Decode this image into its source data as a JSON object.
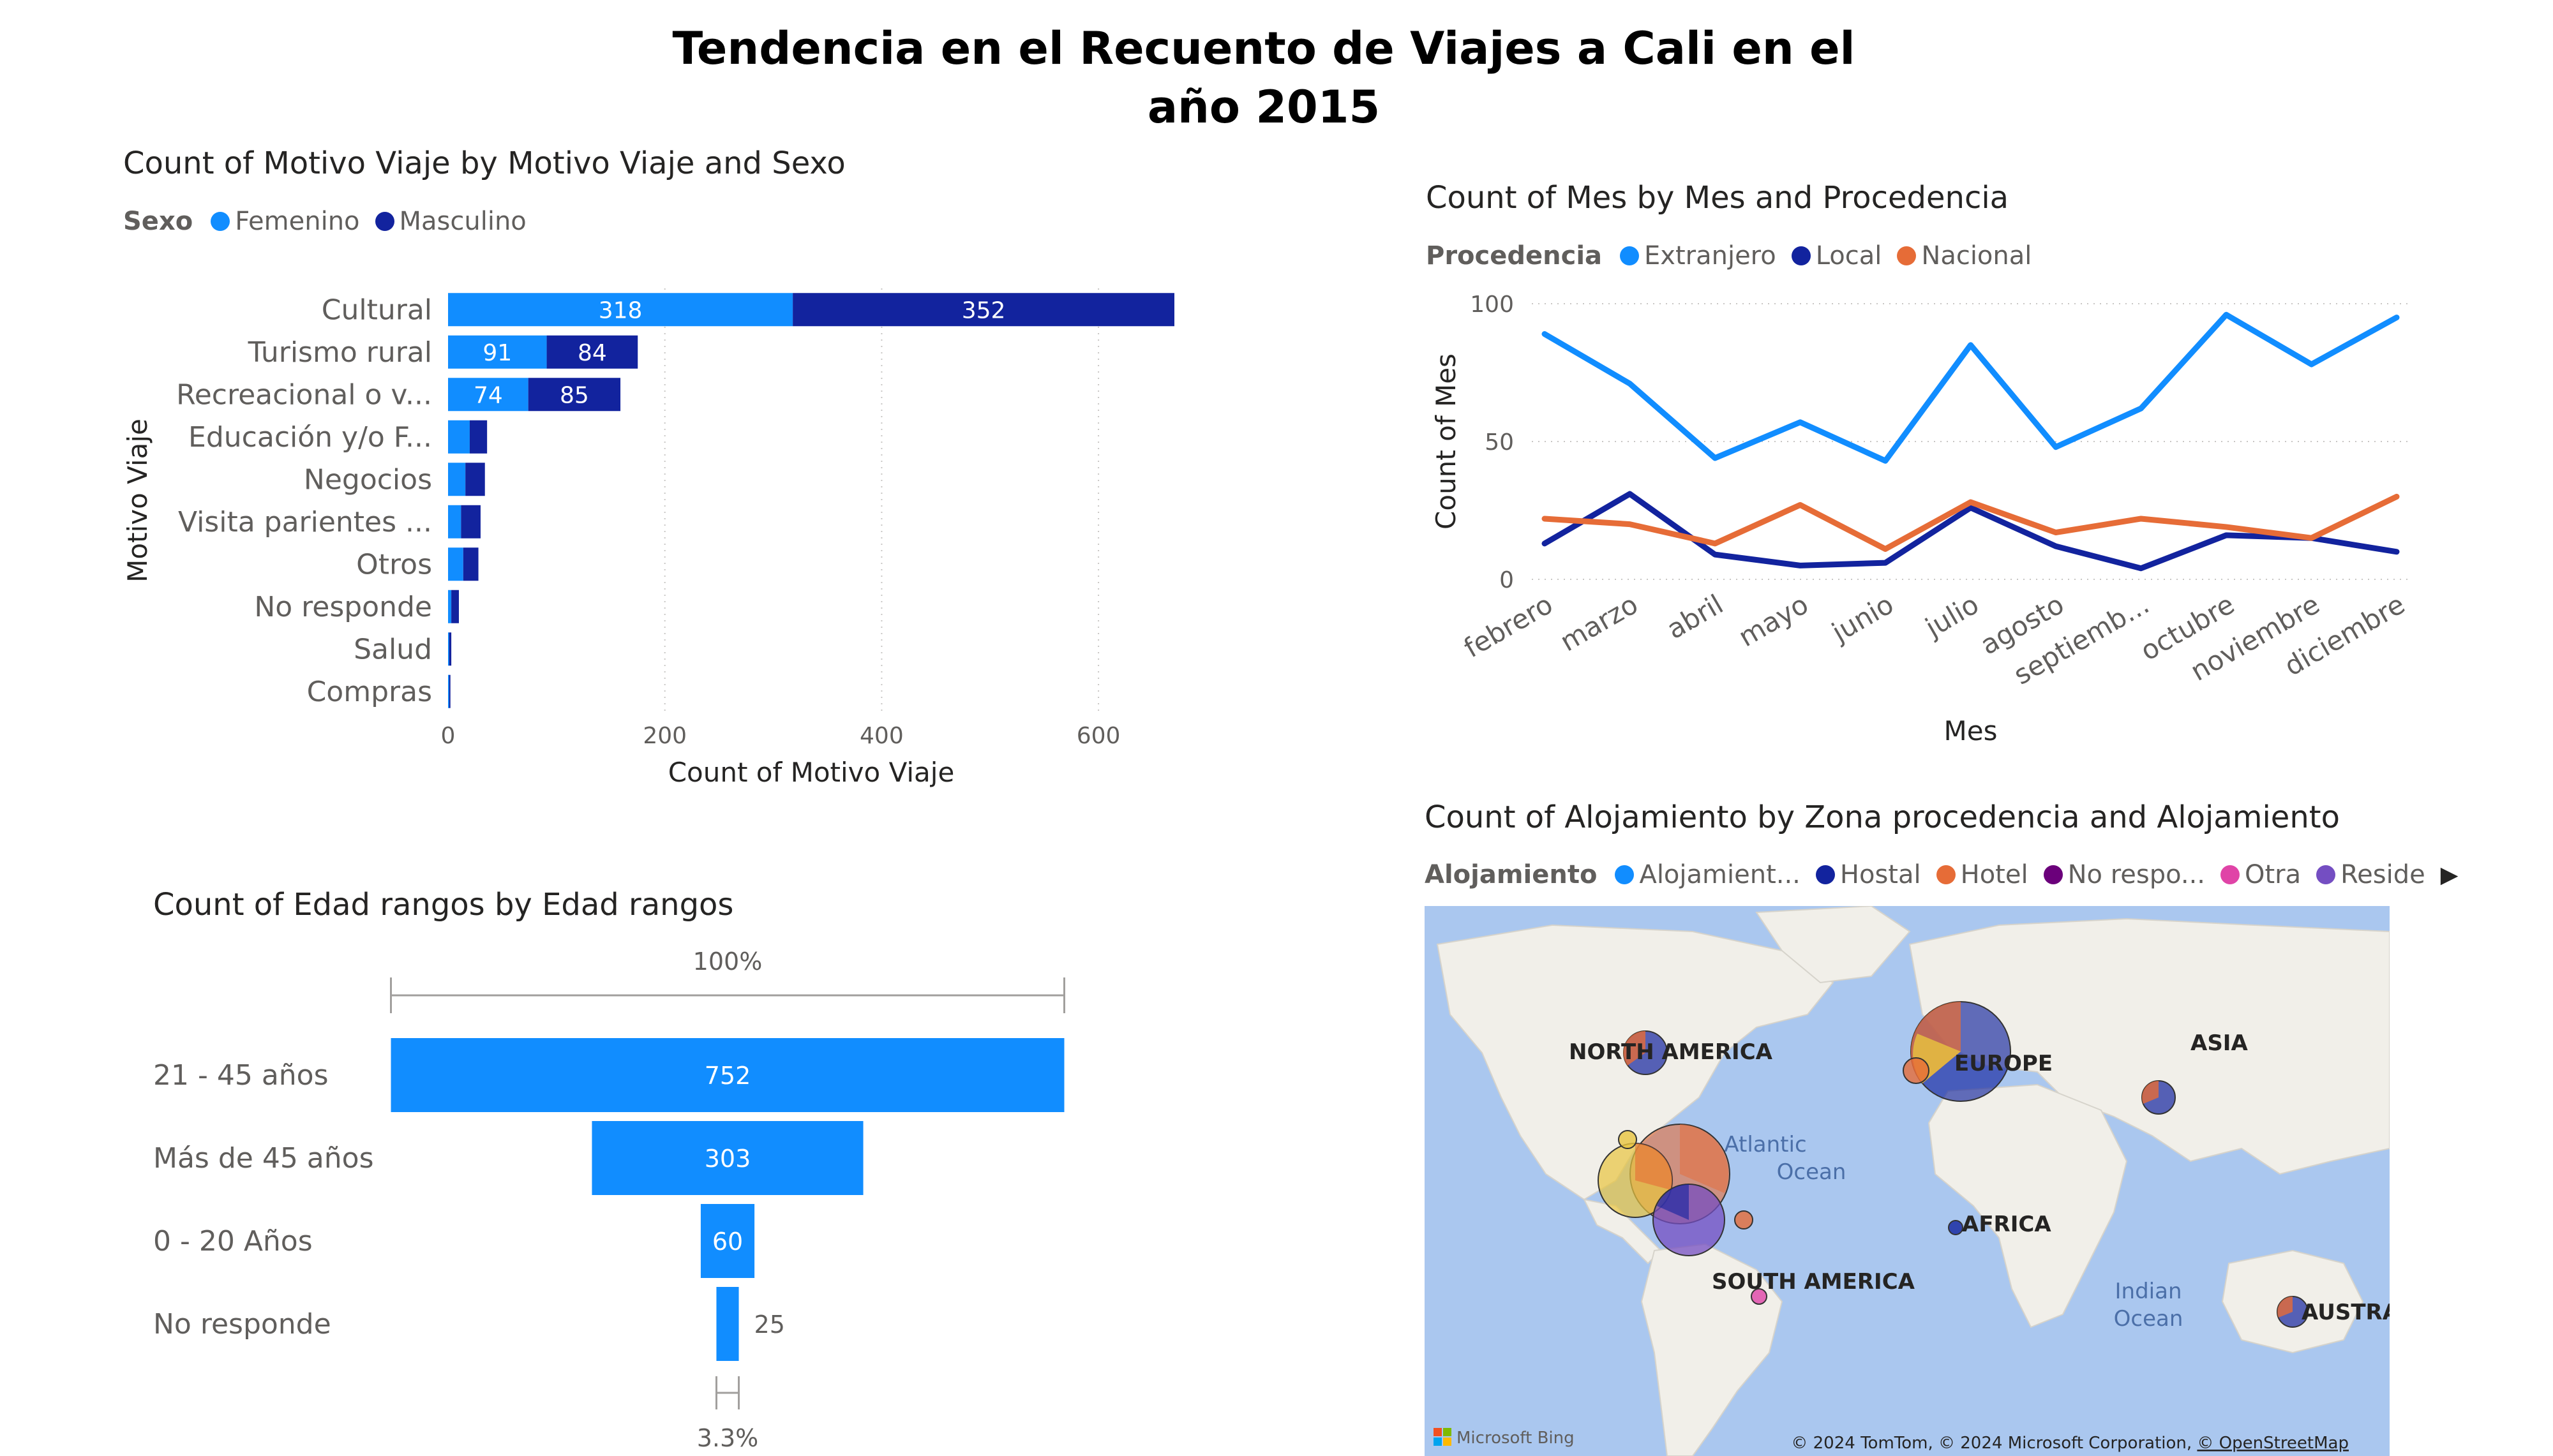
{
  "page": {
    "title": "Tendencia en el Recuento de Viajes a Cali en el año 2015"
  },
  "chart_data": [
    {
      "id": "motivo",
      "type": "bar",
      "orientation": "horizontal",
      "stacked": true,
      "title": "Count of Motivo Viaje by Motivo Viaje and Sexo",
      "legend_title": "Sexo",
      "legend_position": "top-left",
      "xlabel": "Count of Motivo Viaje",
      "ylabel": "Motivo Viaje",
      "xlim": [
        0,
        670
      ],
      "xticks": [
        0,
        200,
        400,
        600
      ],
      "grid": true,
      "categories": [
        "Cultural",
        "Turismo rural",
        "Recreacional o v...",
        "Educación y/o F...",
        "Negocios",
        "Visita parientes ...",
        "Otros",
        "No responde",
        "Salud",
        "Compras"
      ],
      "series": [
        {
          "name": "Femenino",
          "color": "#118dff",
          "values": [
            318,
            91,
            74,
            20,
            16,
            12,
            14,
            3,
            1,
            1
          ],
          "labels": [
            "318",
            "91",
            "74",
            "",
            "",
            "",
            "",
            "",
            "",
            ""
          ]
        },
        {
          "name": "Masculino",
          "color": "#12239e",
          "values": [
            352,
            84,
            85,
            16,
            18,
            18,
            14,
            7,
            2,
            1
          ],
          "labels": [
            "352",
            "84",
            "85",
            "",
            "",
            "",
            "",
            "",
            "",
            ""
          ]
        }
      ]
    },
    {
      "id": "mes",
      "type": "line",
      "title": "Count of Mes by Mes and Procedencia",
      "legend_title": "Procedencia",
      "legend_position": "top-left",
      "xlabel": "Mes",
      "ylabel": "Count of Mes",
      "ylim": [
        0,
        100
      ],
      "yticks": [
        0,
        50,
        100
      ],
      "grid": true,
      "categories": [
        "febrero",
        "marzo",
        "abril",
        "mayo",
        "junio",
        "julio",
        "agosto",
        "septiemb...",
        "octubre",
        "noviembre",
        "diciembre"
      ],
      "series": [
        {
          "name": "Extranjero",
          "color": "#118dff",
          "values": [
            89,
            71,
            44,
            57,
            43,
            85,
            48,
            62,
            96,
            78,
            95
          ]
        },
        {
          "name": "Local",
          "color": "#12239e",
          "values": [
            13,
            31,
            9,
            5,
            6,
            26,
            12,
            4,
            16,
            15,
            10
          ]
        },
        {
          "name": "Nacional",
          "color": "#e66c37",
          "values": [
            22,
            20,
            13,
            27,
            11,
            28,
            17,
            22,
            19,
            15,
            30
          ]
        }
      ]
    },
    {
      "id": "edad",
      "type": "funnel",
      "title": "Count of Edad rangos by Edad rangos",
      "top_percent": "100%",
      "bottom_percent": "3.3%",
      "color": "#118dff",
      "categories": [
        "21 - 45 años",
        "Más de 45 años",
        "0 - 20 Años",
        "No responde"
      ],
      "values": [
        752,
        303,
        60,
        25
      ]
    }
  ],
  "map": {
    "title": "Count of Alojamiento by Zona procedencia and Alojamiento",
    "legend_title": "Alojamiento",
    "legend": [
      {
        "name": "Alojamient...",
        "color": "#118dff"
      },
      {
        "name": "Hostal",
        "color": "#12239e"
      },
      {
        "name": "Hotel",
        "color": "#e66c37"
      },
      {
        "name": "No respo...",
        "color": "#6b007b"
      },
      {
        "name": "Otra",
        "color": "#e044a7"
      },
      {
        "name": "Reside",
        "color": "#744ec2"
      }
    ],
    "labels": {
      "north_america": "NORTH AMERICA",
      "europe": "EUROPE",
      "asia": "ASIA",
      "africa": "AFRICA",
      "south_america": "SOUTH AMERICA",
      "australia": "AUSTRALI",
      "atlantic_1": "Atlantic",
      "atlantic_2": "Ocean",
      "indian_1": "Indian",
      "indian_2": "Ocean"
    },
    "brand": "Microsoft Bing",
    "attribution": "© 2024 TomTom, © 2024 Microsoft Corporation, ",
    "osm_link": "© OpenStreetMap"
  }
}
